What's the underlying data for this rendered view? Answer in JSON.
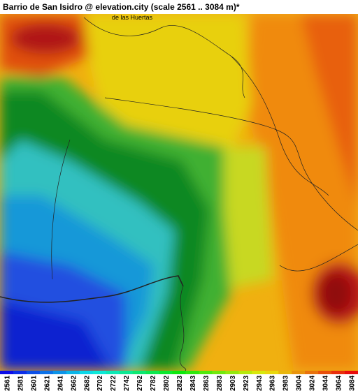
{
  "header": {
    "title": "Barrio de San Isidro @ elevation.city (scale 2561 .. 3084 m)*"
  },
  "map": {
    "labels": [
      "de las Huertas"
    ]
  },
  "legend": {
    "ticks": [
      2561,
      2581,
      2601,
      2621,
      2641,
      2662,
      2682,
      2702,
      2722,
      2742,
      2762,
      2782,
      2802,
      2823,
      2843,
      2863,
      2883,
      2903,
      2923,
      2943,
      2963,
      2983,
      3004,
      3024,
      3044,
      3064,
      3084
    ]
  }
}
